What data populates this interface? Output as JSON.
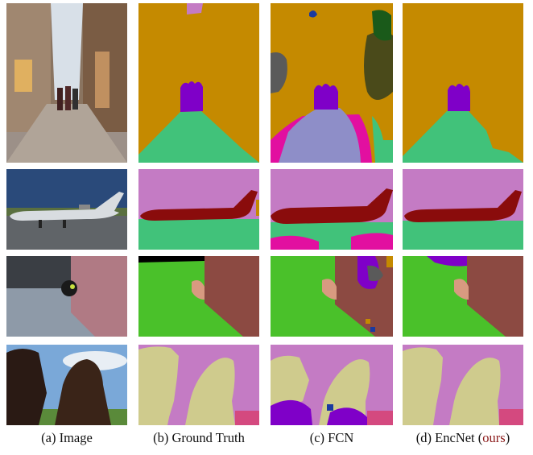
{
  "figure": {
    "columns": [
      {
        "label": "(a) Image"
      },
      {
        "label": "(b) Ground Truth"
      },
      {
        "label": "(c) FCN"
      },
      {
        "label_main": "(d) EncNet (",
        "label_ours": "ours",
        "label_end": ")"
      }
    ],
    "rows": [
      {
        "content": "street scene with people"
      },
      {
        "content": "airplane on runway"
      },
      {
        "content": "cat near wall"
      },
      {
        "content": "two horses"
      }
    ],
    "colors": {
      "building": "#c58a00",
      "road": "#41c27a",
      "person": "#7f00c8",
      "sky": "#c47bc4",
      "airplane": "#8a0c0c",
      "grass": "#4ac12a",
      "wall": "#8c4a42",
      "horse": "#cfcb8d",
      "ground": "#d4497f",
      "fcn_purple": "#8e8ec8",
      "fcn_magenta": "#e20fa0",
      "fcn_gray": "#5a5a5a",
      "fcn_olive": "#4a4a1a"
    }
  }
}
